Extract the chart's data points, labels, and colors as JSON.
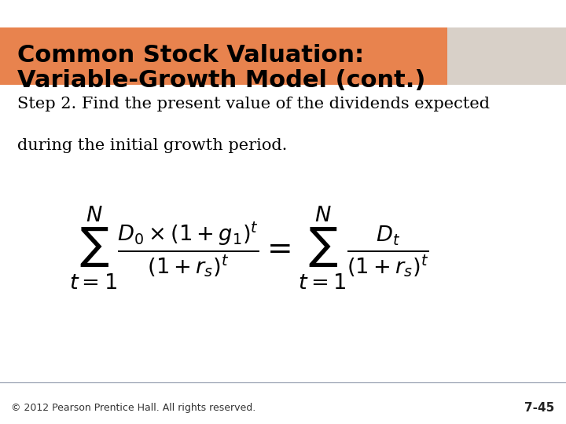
{
  "title_line1": "Common Stock Valuation:",
  "title_line2": "Variable-Growth Model (cont.)",
  "title_bg_color": "#E8834E",
  "title_text_color": "#000000",
  "body_bg_color": "#FFFFFF",
  "footer_bg_color": "#C8CDD8",
  "footer_text": "© 2012 Pearson Prentice Hall. All rights reserved.",
  "footer_page": "7-45",
  "step_text_line1": "Step 2. Find the present value of the dividends expected",
  "step_text_line2": "during the initial growth period.",
  "formula_latex": "\\sum_{t=1}^{N} \\frac{D_0 \\times (1 + g_1)^t}{(1 + r_s)^t} = \\sum_{t=1}^{N} \\frac{D_t}{(1 + r_s)^t}",
  "title_fontsize": 22,
  "step_fontsize": 15,
  "formula_fontsize": 28,
  "footer_fontsize": 9,
  "page_fontsize": 11
}
